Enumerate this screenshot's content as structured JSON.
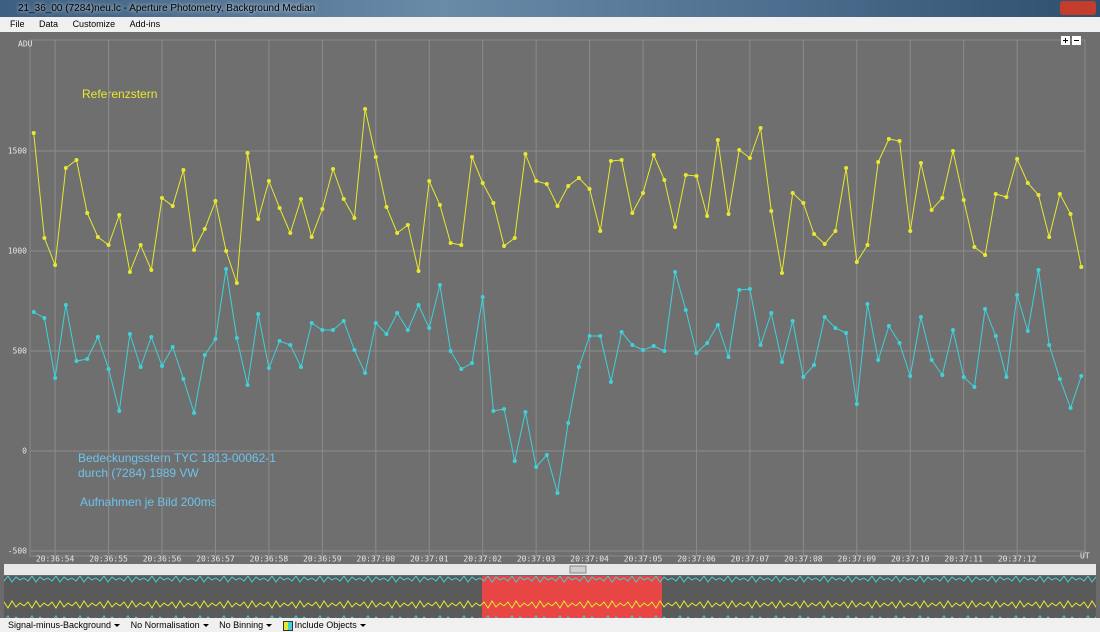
{
  "window": {
    "title": "21_36_00 (7284)neu.lc - Aperture Photometry, Background Median",
    "menu": [
      "File",
      "Data",
      "Customize",
      "Add-ins"
    ],
    "toolbar": [
      "Signal-minus-Background",
      "No Normalisation",
      "No Binning",
      "Include Objects"
    ]
  },
  "chart_data": {
    "type": "line",
    "y_label": "ADU",
    "x_label": "UT",
    "annotations": [
      "Referenzstern",
      "Bedeckungsstern  TYC 1813-00062-1",
      "durch (7284) 1989 VW",
      "Aufnahmen  je Bild 200ms"
    ],
    "xlim": [
      53.53,
      73.27
    ],
    "xticks": [
      {
        "value": 54,
        "label": "20:36:54"
      },
      {
        "value": 55,
        "label": "20:36:55"
      },
      {
        "value": 56,
        "label": "20:36:56"
      },
      {
        "value": 57,
        "label": "20:36:57"
      },
      {
        "value": 58,
        "label": "20:36:58"
      },
      {
        "value": 59,
        "label": "20:36:59"
      },
      {
        "value": 60,
        "label": "20:37:00"
      },
      {
        "value": 61,
        "label": "20:37:01"
      },
      {
        "value": 62,
        "label": "20:37:02"
      },
      {
        "value": 63,
        "label": "20:37:03"
      },
      {
        "value": 64,
        "label": "20:37:04"
      },
      {
        "value": 65,
        "label": "20:37:05"
      },
      {
        "value": 66,
        "label": "20:37:06"
      },
      {
        "value": 67,
        "label": "20:37:07"
      },
      {
        "value": 68,
        "label": "20:37:08"
      },
      {
        "value": 69,
        "label": "20:37:09"
      },
      {
        "value": 70,
        "label": "20:37:10"
      },
      {
        "value": 71,
        "label": "20:37:11"
      },
      {
        "value": 72,
        "label": "20:37:12"
      }
    ],
    "ylim": [
      -525,
      2055
    ],
    "yticks": [
      -500,
      0,
      500,
      1000,
      1500
    ],
    "grid": true,
    "x": [
      53.6,
      53.8,
      54,
      54.2,
      54.4,
      54.6,
      54.8,
      55,
      55.2,
      55.4,
      55.6,
      55.8,
      56,
      56.2,
      56.4,
      56.6,
      56.8,
      57,
      57.2,
      57.4,
      57.6,
      57.8,
      58,
      58.2,
      58.4,
      58.6,
      58.8,
      59,
      59.2,
      59.4,
      59.6,
      59.8,
      60,
      60.2,
      60.4,
      60.6,
      60.8,
      61,
      61.2,
      61.4,
      61.6,
      61.8,
      62,
      62.2,
      62.4,
      62.6,
      62.8,
      63,
      63.2,
      63.4,
      63.6,
      63.8,
      64,
      64.2,
      64.4,
      64.6,
      64.8,
      65,
      65.2,
      65.4,
      65.6,
      65.8,
      66,
      66.2,
      66.4,
      66.6,
      66.8,
      67,
      67.2,
      67.4,
      67.6,
      67.8,
      68,
      68.2,
      68.4,
      68.6,
      68.8,
      69,
      69.2,
      69.4,
      69.6,
      69.8,
      70,
      70.2,
      70.4,
      70.6,
      70.8,
      71,
      71.2,
      71.4,
      71.6,
      71.8,
      72,
      72.2,
      72.4,
      72.6,
      72.8,
      73,
      73.2
    ],
    "series": [
      {
        "color": "#e8e830",
        "values": [
          1590,
          1065,
          930,
          1415,
          1455,
          1190,
          1070,
          1030,
          1180,
          895,
          1030,
          905,
          1265,
          1225,
          1405,
          1005,
          1110,
          1250,
          1000,
          840,
          1490,
          1160,
          1350,
          1215,
          1090,
          1260,
          1070,
          1210,
          1410,
          1260,
          1165,
          1710,
          1470,
          1220,
          1090,
          1130,
          900,
          1350,
          1230,
          1040,
          1030,
          1470,
          1340,
          1240,
          1025,
          1065,
          1485,
          1350,
          1335,
          1225,
          1325,
          1365,
          1310,
          1100,
          1450,
          1455,
          1190,
          1290,
          1480,
          1355,
          1120,
          1380,
          1375,
          1175,
          1555,
          1185,
          1505,
          1465,
          1615,
          1200,
          890,
          1290,
          1240,
          1085,
          1035,
          1100,
          1415,
          945,
          1030,
          1445,
          1560,
          1550,
          1100,
          1440,
          1205,
          1265,
          1500,
          1255,
          1020,
          980,
          1285,
          1270,
          1460,
          1340,
          1280,
          1070,
          1285,
          1185,
          920
        ]
      },
      {
        "color": "#40d0d8",
        "values": [
          695,
          665,
          365,
          730,
          450,
          460,
          570,
          410,
          200,
          585,
          420,
          570,
          425,
          520,
          360,
          190,
          480,
          560,
          910,
          565,
          330,
          685,
          415,
          550,
          530,
          420,
          640,
          605,
          605,
          650,
          505,
          390,
          640,
          585,
          690,
          605,
          730,
          615,
          830,
          500,
          410,
          440,
          770,
          200,
          210,
          -50,
          195,
          -80,
          -20,
          -210,
          140,
          420,
          575,
          575,
          345,
          595,
          530,
          505,
          525,
          500,
          895,
          705,
          490,
          540,
          630,
          470,
          805,
          810,
          530,
          690,
          445,
          650,
          370,
          430,
          670,
          615,
          590,
          235,
          735,
          455,
          625,
          540,
          375,
          670,
          455,
          380,
          605,
          370,
          320,
          710,
          575,
          370,
          780,
          600,
          905,
          530,
          360,
          215,
          375
        ]
      }
    ]
  }
}
